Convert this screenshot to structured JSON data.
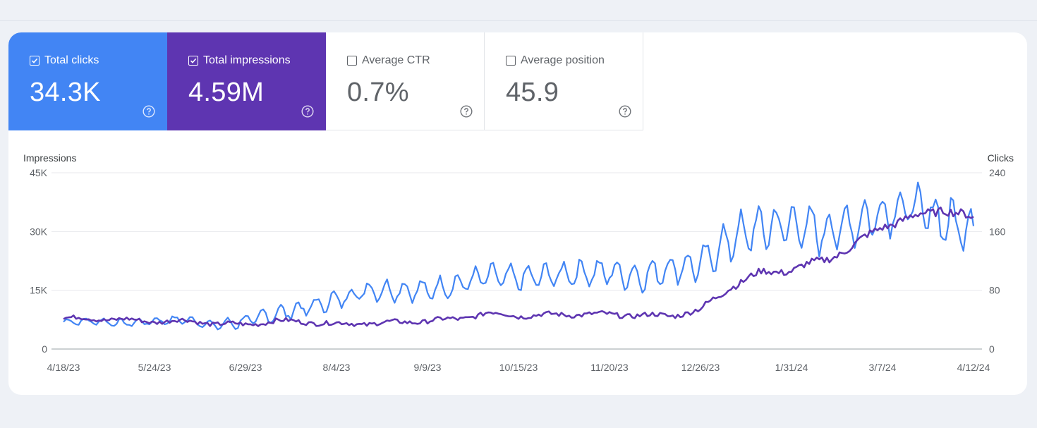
{
  "metrics": [
    {
      "label": "Total clicks",
      "value": "34.3K",
      "checked": true,
      "color": "#4285f4"
    },
    {
      "label": "Total impressions",
      "value": "4.59M",
      "checked": true,
      "color": "#5e35b1"
    },
    {
      "label": "Average CTR",
      "value": "0.7%",
      "checked": false,
      "color": "#ffffff"
    },
    {
      "label": "Average position",
      "value": "45.9",
      "checked": false,
      "color": "#ffffff"
    }
  ],
  "chart_data": {
    "type": "line",
    "left_axis_label": "Impressions",
    "right_axis_label": "Clicks",
    "left_ticks": [
      "0",
      "15K",
      "30K",
      "45K"
    ],
    "right_ticks": [
      "0",
      "80",
      "160",
      "240"
    ],
    "left_ylim": [
      0,
      45000
    ],
    "right_ylim": [
      0,
      240
    ],
    "x_tick_labels": [
      "4/18/23",
      "5/24/23",
      "6/29/23",
      "8/4/23",
      "9/9/23",
      "10/15/23",
      "11/20/23",
      "12/26/23",
      "1/31/24",
      "3/7/24",
      "4/12/24"
    ],
    "grid": true,
    "series": [
      {
        "name": "Clicks",
        "axis": "right",
        "color": "#4285f4",
        "anchors_day_value": [
          [
            0,
            37
          ],
          [
            12,
            38
          ],
          [
            24,
            35
          ],
          [
            36,
            38
          ],
          [
            48,
            40
          ],
          [
            60,
            32
          ],
          [
            72,
            38
          ],
          [
            84,
            48
          ],
          [
            96,
            56
          ],
          [
            108,
            67
          ],
          [
            120,
            80
          ],
          [
            132,
            80
          ],
          [
            144,
            80
          ],
          [
            156,
            88
          ],
          [
            168,
            100
          ],
          [
            180,
            96
          ],
          [
            192,
            100
          ],
          [
            204,
            104
          ],
          [
            216,
            105
          ],
          [
            228,
            98
          ],
          [
            240,
            110
          ],
          [
            252,
            115
          ],
          [
            264,
            150
          ],
          [
            276,
            165
          ],
          [
            288,
            170
          ],
          [
            300,
            160
          ],
          [
            312,
            170
          ],
          [
            324,
            185
          ],
          [
            336,
            195
          ],
          [
            348,
            175
          ],
          [
            360,
            165
          ]
        ],
        "amplitude": [
          [
            0,
            4
          ],
          [
            60,
            5
          ],
          [
            72,
            9
          ],
          [
            120,
            12
          ],
          [
            240,
            17
          ],
          [
            252,
            20
          ],
          [
            264,
            27
          ],
          [
            324,
            27
          ],
          [
            360,
            30
          ]
        ]
      },
      {
        "name": "Impressions",
        "axis": "left",
        "color": "#5e35b1",
        "anchors_day_value": [
          [
            0,
            7900
          ],
          [
            12,
            7700
          ],
          [
            24,
            7500
          ],
          [
            36,
            7000
          ],
          [
            48,
            7200
          ],
          [
            60,
            6500
          ],
          [
            72,
            6200
          ],
          [
            84,
            7200
          ],
          [
            96,
            6900
          ],
          [
            108,
            6400
          ],
          [
            120,
            6500
          ],
          [
            132,
            6800
          ],
          [
            144,
            7200
          ],
          [
            156,
            7700
          ],
          [
            168,
            9200
          ],
          [
            180,
            8500
          ],
          [
            192,
            8700
          ],
          [
            204,
            8900
          ],
          [
            216,
            8800
          ],
          [
            228,
            8600
          ],
          [
            240,
            8500
          ],
          [
            252,
            10000
          ],
          [
            264,
            16000
          ],
          [
            276,
            19500
          ],
          [
            288,
            20200
          ],
          [
            300,
            22500
          ],
          [
            312,
            26000
          ],
          [
            324,
            31500
          ],
          [
            336,
            33500
          ],
          [
            348,
            36000
          ],
          [
            360,
            33000
          ]
        ],
        "amplitude": [
          [
            0,
            900
          ],
          [
            240,
            1100
          ],
          [
            260,
            1400
          ],
          [
            360,
            2000
          ]
        ]
      }
    ]
  }
}
